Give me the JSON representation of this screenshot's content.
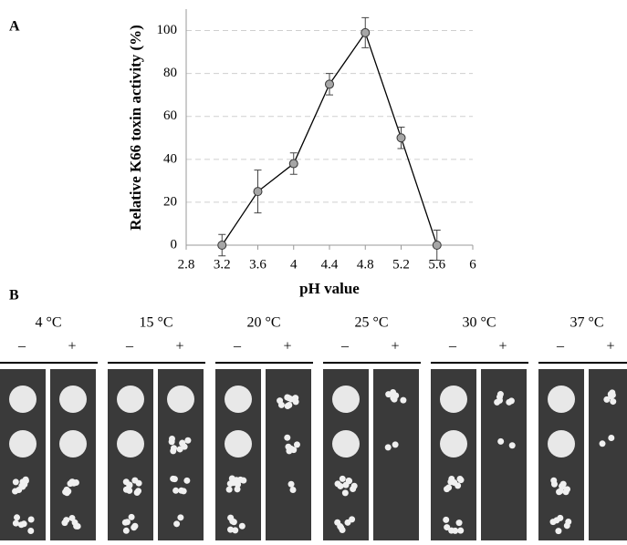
{
  "chart_data": {
    "type": "line",
    "panel": "A",
    "x": [
      3.2,
      3.6,
      4,
      4.4,
      4.8,
      5.2,
      5.6
    ],
    "values": [
      0,
      25,
      38,
      75,
      99,
      50,
      0
    ],
    "errors": [
      5,
      10,
      5,
      5,
      7,
      5,
      7
    ],
    "color": "#000000",
    "marker_color": "#a6a6a6",
    "xlim": [
      2.8,
      6
    ],
    "xticks": [
      2.8,
      3.2,
      3.6,
      4,
      4.4,
      4.8,
      5.2,
      5.6,
      6
    ],
    "ylim": [
      0,
      110
    ],
    "yticks": [
      0,
      20,
      40,
      60,
      80,
      100
    ],
    "grid": true,
    "xlabel": "pH value",
    "ylabel": "Relative K66 toxin activity (%)"
  },
  "panel_b": {
    "label": "B",
    "signs": [
      "–",
      "+"
    ],
    "temperatures": [
      "4 °C",
      "15 °C",
      "20 °C",
      "25 °C",
      "30 °C",
      "37 °C"
    ]
  }
}
